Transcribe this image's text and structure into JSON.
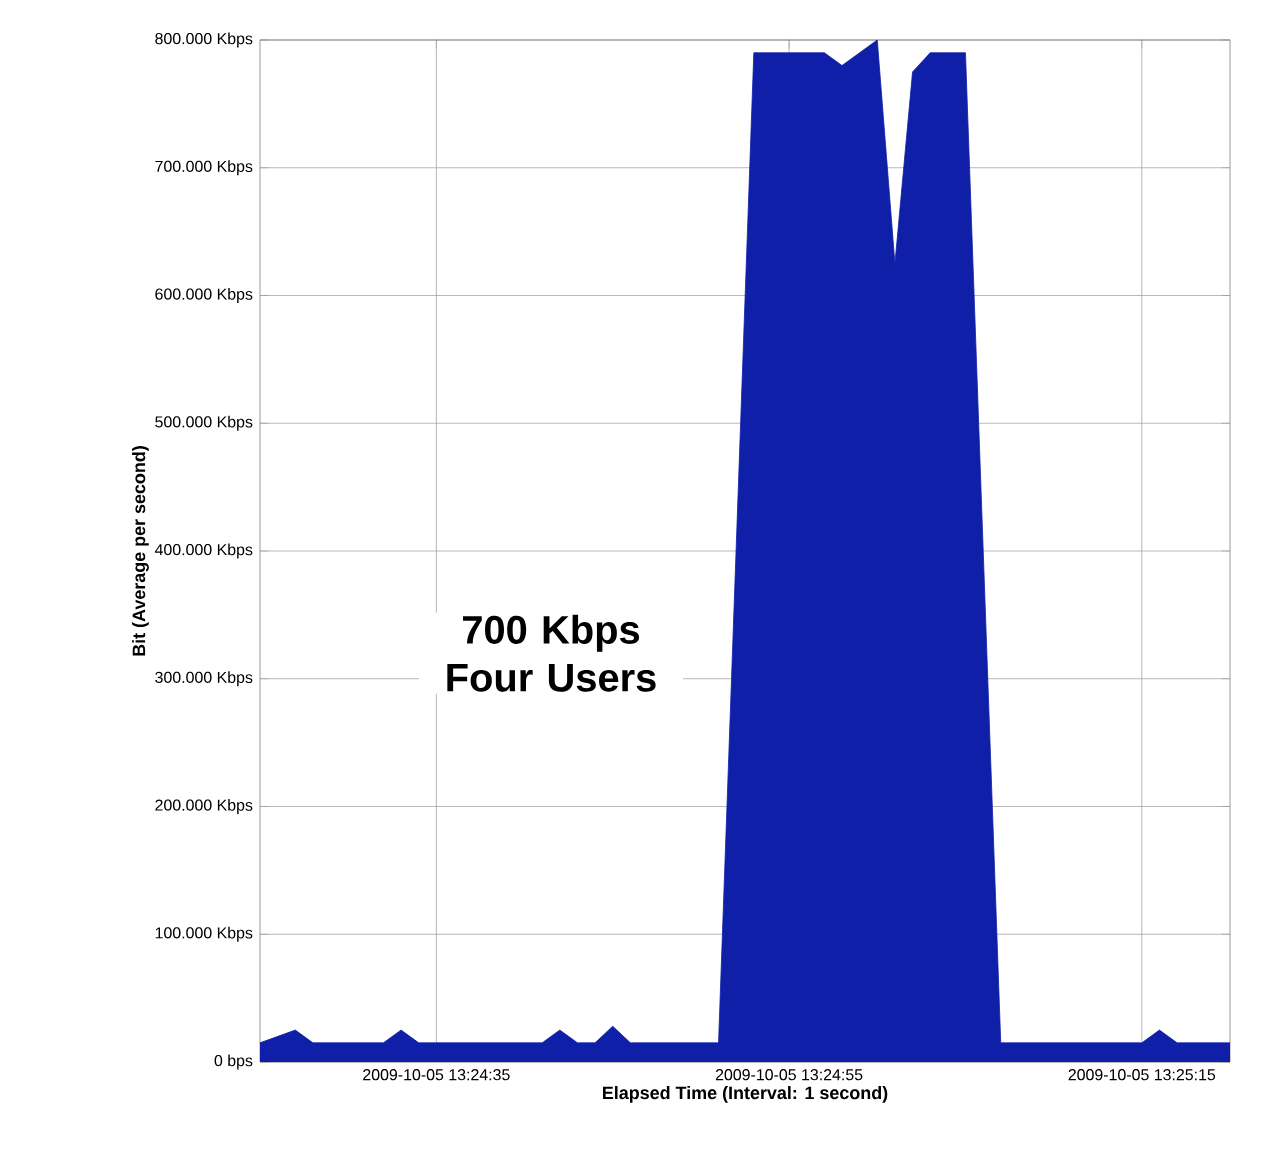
{
  "chart_data": {
    "type": "area",
    "xlabel": "Elapsed Time (Interval: 1 second)",
    "ylabel": "Bit (Average per second)",
    "annotations": [
      "700 Kbps Four Users"
    ],
    "x": [
      "2009-10-05T13:24:25",
      "2009-10-05T13:24:27",
      "2009-10-05T13:24:28",
      "2009-10-05T13:24:32",
      "2009-10-05T13:24:33",
      "2009-10-05T13:24:34",
      "2009-10-05T13:24:41",
      "2009-10-05T13:24:42",
      "2009-10-05T13:24:43",
      "2009-10-05T13:24:44",
      "2009-10-05T13:24:45",
      "2009-10-05T13:24:46",
      "2009-10-05T13:24:51",
      "2009-10-05T13:24:53",
      "2009-10-05T13:24:57",
      "2009-10-05T13:24:58",
      "2009-10-05T13:25:00",
      "2009-10-05T13:25:01",
      "2009-10-05T13:25:02",
      "2009-10-05T13:25:03",
      "2009-10-05T13:25:05",
      "2009-10-05T13:25:07",
      "2009-10-05T13:25:15",
      "2009-10-05T13:25:16",
      "2009-10-05T13:25:17",
      "2009-10-05T13:25:20"
    ],
    "series": [
      {
        "color": "#0f1fa8",
        "values": [
          15000,
          25000,
          15000,
          15000,
          25000,
          15000,
          15000,
          25000,
          15000,
          15000,
          28000,
          15000,
          15000,
          790000,
          790000,
          780000,
          800000,
          625000,
          775000,
          790000,
          790000,
          15000,
          15000,
          25000,
          15000,
          15000
        ]
      }
    ],
    "xlim": [
      "2009-10-05T13:24:25",
      "2009-10-05T13:25:20"
    ],
    "xticks": [
      {
        "value": "2009-10-05T13:24:35",
        "label": "2009-10-05 13:24:35"
      },
      {
        "value": "2009-10-05T13:24:55",
        "label": "2009-10-05 13:24:55"
      },
      {
        "value": "2009-10-05T13:25:15",
        "label": "2009-10-05 13:25:15"
      }
    ],
    "ylim": [
      0,
      800000
    ],
    "yticks": [
      {
        "value": 0,
        "label": "0 bps"
      },
      {
        "value": 100000,
        "label": "100.000 Kbps"
      },
      {
        "value": 200000,
        "label": "200.000 Kbps"
      },
      {
        "value": 300000,
        "label": "300.000 Kbps"
      },
      {
        "value": 400000,
        "label": "400.000 Kbps"
      },
      {
        "value": 500000,
        "label": "500.000 Kbps"
      },
      {
        "value": 600000,
        "label": "600.000 Kbps"
      },
      {
        "value": 700000,
        "label": "700.000 Kbps"
      },
      {
        "value": 800000,
        "label": "800.000 Kbps"
      }
    ],
    "grid": true
  }
}
